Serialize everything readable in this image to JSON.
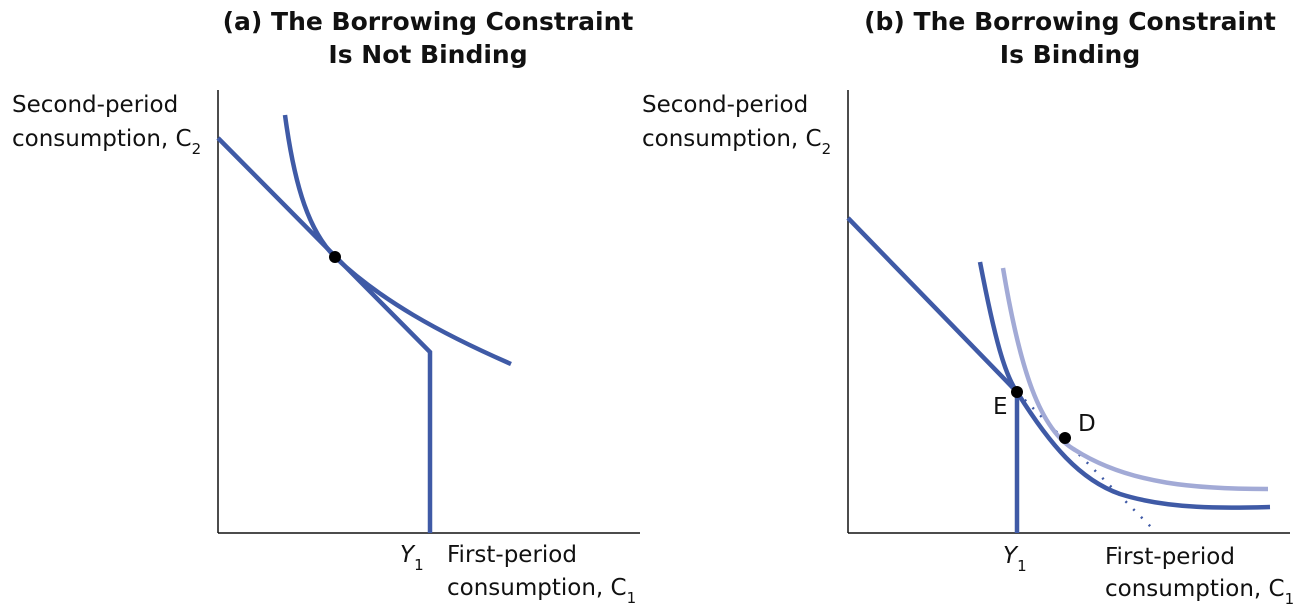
{
  "panels": [
    {
      "title": [
        "(a) The Borrowing Constraint",
        "Is Not Binding"
      ],
      "y_label": [
        "Second-period",
        "consumption, C"
      ],
      "y_label_sub": "2",
      "x_label": [
        "First-period",
        "consumption, C"
      ],
      "x_label_sub": "1",
      "tick": "Y",
      "tick_sub": "1"
    },
    {
      "title": [
        "(b) The Borrowing Constraint",
        "Is Binding"
      ],
      "y_label": [
        "Second-period",
        "consumption, C"
      ],
      "y_label_sub": "2",
      "x_label": [
        "First-period",
        "consumption, C"
      ],
      "x_label_sub": "1",
      "tick": "Y",
      "tick_sub": "1",
      "points": [
        "E",
        "D"
      ]
    }
  ]
}
